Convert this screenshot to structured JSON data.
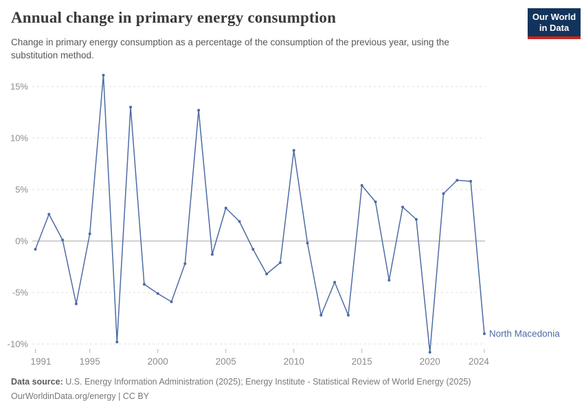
{
  "header": {
    "title": "Annual change in primary energy consumption",
    "subtitle": "Change in primary energy consumption as a percentage of the consumption of the previous year, using the substitution method.",
    "logo": {
      "line1": "Our World",
      "line2": "in Data"
    }
  },
  "chart_data": {
    "type": "line",
    "title": "Annual change in primary energy consumption",
    "entity_label": "North Macedonia",
    "x": [
      1991,
      1992,
      1993,
      1994,
      1995,
      1996,
      1997,
      1998,
      1999,
      2000,
      2001,
      2002,
      2003,
      2004,
      2005,
      2006,
      2007,
      2008,
      2009,
      2010,
      2011,
      2012,
      2013,
      2014,
      2015,
      2016,
      2017,
      2018,
      2019,
      2020,
      2021,
      2022,
      2023,
      2024
    ],
    "series": [
      {
        "name": "North Macedonia",
        "values": [
          -0.8,
          2.6,
          0.1,
          -6.1,
          0.7,
          16.1,
          -9.8,
          13.0,
          -4.2,
          -5.1,
          -5.9,
          -2.2,
          12.7,
          -1.3,
          3.2,
          1.9,
          -0.8,
          -3.2,
          -2.1,
          8.8,
          -0.2,
          -7.2,
          -4.0,
          -7.2,
          5.4,
          3.8,
          -3.8,
          3.3,
          2.1,
          -10.8,
          4.6,
          5.9,
          5.8,
          -9.0
        ]
      }
    ],
    "xlabel": "",
    "ylabel": "",
    "x_ticks": [
      1991,
      1995,
      2000,
      2005,
      2010,
      2015,
      2020,
      2024
    ],
    "x_tick_labels": [
      "1991",
      "1995",
      "2000",
      "2005",
      "2010",
      "2015",
      "2020",
      "2024"
    ],
    "y_ticks": [
      15,
      10,
      5,
      0,
      -5,
      -10
    ],
    "y_tick_labels": [
      "15%",
      "10%",
      "5%",
      "0%",
      "-5%",
      "-10%"
    ],
    "ylim": [
      -11,
      16.5
    ],
    "xlim": [
      1991,
      2024
    ],
    "grid": "horizontal-dashed",
    "legend_position": "end-of-line-label",
    "colors": {
      "line": "#4c6ba5",
      "grid": "#dcdcdc",
      "zero_line": "#a3a3a3",
      "tick_text": "#8c8c8c",
      "tick_mark": "#b5b5b5"
    }
  },
  "footer": {
    "source_label": "Data source:",
    "source_text": " U.S. Energy Information Administration (2025); Energy Institute - Statistical Review of World Energy (2025)",
    "license_line": "OurWorldinData.org/energy | CC BY"
  },
  "brand": {
    "navy": "#12345c",
    "red": "#ce2419"
  }
}
